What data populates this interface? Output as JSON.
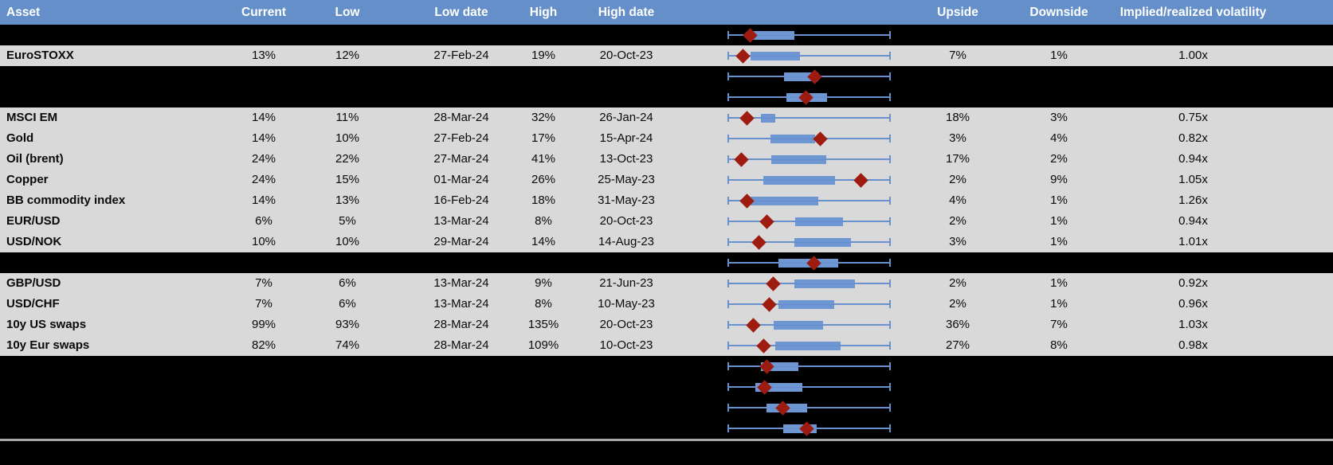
{
  "styles": {
    "header_bg": "#648fc9",
    "header_text": "#ffffff",
    "row_gray_bg": "#d9d9d9",
    "row_black_bg": "#000000",
    "whisker_color": "#6890cc",
    "box_fill": "#6e96d2",
    "diamond_color": "#9e1b10",
    "bottom_separator": "#a6a6a6"
  },
  "chart_data": {
    "type": "table",
    "title": "Asset implied volatility ranges with box-whisker plots (red diamond = current level)",
    "columns": [
      "Asset",
      "Current",
      "Low",
      "Low date",
      "High",
      "High date",
      "",
      "Upside",
      "Downside",
      "Implied/realized volatility"
    ],
    "boxplot_note": "Each row's whisker spans the full normalized low-high range (0-100%); box = interquartile range; red diamond marks current level. Percent values below are positions across the whisker width.",
    "rows": [
      {
        "hidden": true,
        "asset": "",
        "current": "",
        "low": "",
        "low_date": "",
        "high": "",
        "high_date": "",
        "upside": "",
        "downside": "",
        "impl_real_vol": "",
        "box_low_pct": 15.6,
        "box_high_pct": 41.0,
        "marker_pct": 13.7
      },
      {
        "hidden": false,
        "asset": "EuroSTOXX",
        "current": "13%",
        "low": "12%",
        "low_date": "27-Feb-24",
        "high": "19%",
        "high_date": "20-Oct-23",
        "upside": "7%",
        "downside": "1%",
        "impl_real_vol": "1.00x",
        "box_low_pct": 14.1,
        "box_high_pct": 44.4,
        "marker_pct": 9.3
      },
      {
        "hidden": true,
        "asset": "",
        "current": "",
        "low": "",
        "low_date": "",
        "high": "",
        "high_date": "",
        "upside": "",
        "downside": "",
        "impl_real_vol": "",
        "box_low_pct": 34.6,
        "box_high_pct": 55.6,
        "marker_pct": 53.2
      },
      {
        "hidden": true,
        "asset": "",
        "current": "",
        "low": "",
        "low_date": "",
        "high": "",
        "high_date": "",
        "upside": "",
        "downside": "",
        "impl_real_vol": "",
        "box_low_pct": 36.0,
        "box_high_pct": 61.0,
        "marker_pct": 47.8
      },
      {
        "hidden": false,
        "asset": "MSCI EM",
        "current": "14%",
        "low": "11%",
        "low_date": "28-Mar-24",
        "high": "32%",
        "high_date": "26-Jan-24",
        "upside": "18%",
        "downside": "3%",
        "impl_real_vol": "0.75x",
        "box_low_pct": 20.5,
        "box_high_pct": 29.3,
        "marker_pct": 11.7
      },
      {
        "hidden": false,
        "asset": "Gold",
        "current": "14%",
        "low": "10%",
        "low_date": "27-Feb-24",
        "high": "17%",
        "high_date": "15-Apr-24",
        "upside": "3%",
        "downside": "4%",
        "impl_real_vol": "0.82x",
        "box_low_pct": 26.3,
        "box_high_pct": 53.7,
        "marker_pct": 57.0
      },
      {
        "hidden": false,
        "asset": "Oil (brent)",
        "current": "24%",
        "low": "22%",
        "low_date": "27-Mar-24",
        "high": "41%",
        "high_date": "13-Oct-23",
        "upside": "17%",
        "downside": "2%",
        "impl_real_vol": "0.94x",
        "box_low_pct": 26.8,
        "box_high_pct": 60.5,
        "marker_pct": 8.3
      },
      {
        "hidden": false,
        "asset": "Copper",
        "current": "24%",
        "low": "15%",
        "low_date": "01-Mar-24",
        "high": "26%",
        "high_date": "25-May-23",
        "upside": "2%",
        "downside": "9%",
        "impl_real_vol": "1.05x",
        "box_low_pct": 22.0,
        "box_high_pct": 66.0,
        "marker_pct": 81.5
      },
      {
        "hidden": false,
        "asset": "BB commodity index",
        "current": "14%",
        "low": "13%",
        "low_date": "16-Feb-24",
        "high": "18%",
        "high_date": "31-May-23",
        "upside": "4%",
        "downside": "1%",
        "impl_real_vol": "1.26x",
        "box_low_pct": 14.0,
        "box_high_pct": 55.6,
        "marker_pct": 11.7
      },
      {
        "hidden": false,
        "asset": "EUR/USD",
        "current": "6%",
        "low": "5%",
        "low_date": "13-Mar-24",
        "high": "8%",
        "high_date": "20-Oct-23",
        "upside": "2%",
        "downside": "1%",
        "impl_real_vol": "0.94x",
        "box_low_pct": 41.5,
        "box_high_pct": 70.7,
        "marker_pct": 24.0
      },
      {
        "hidden": false,
        "asset": "USD/NOK",
        "current": "10%",
        "low": "10%",
        "low_date": "29-Mar-24",
        "high": "14%",
        "high_date": "14-Aug-23",
        "upside": "3%",
        "downside": "1%",
        "impl_real_vol": "1.01x",
        "box_low_pct": 41.0,
        "box_high_pct": 75.6,
        "marker_pct": 19.0
      },
      {
        "hidden": true,
        "asset": "",
        "current": "",
        "low": "",
        "low_date": "",
        "high": "",
        "high_date": "",
        "upside": "",
        "downside": "",
        "impl_real_vol": "",
        "box_low_pct": 31.0,
        "box_high_pct": 67.8,
        "marker_pct": 53.0
      },
      {
        "hidden": false,
        "asset": "GBP/USD",
        "current": "7%",
        "low": "6%",
        "low_date": "13-Mar-24",
        "high": "9%",
        "high_date": "21-Jun-23",
        "upside": "2%",
        "downside": "1%",
        "impl_real_vol": "0.92x",
        "box_low_pct": 41.0,
        "box_high_pct": 78.0,
        "marker_pct": 27.8
      },
      {
        "hidden": false,
        "asset": "USD/CHF",
        "current": "7%",
        "low": "6%",
        "low_date": "13-Mar-24",
        "high": "8%",
        "high_date": "10-May-23",
        "upside": "2%",
        "downside": "1%",
        "impl_real_vol": "0.96x",
        "box_low_pct": 31.2,
        "box_high_pct": 65.4,
        "marker_pct": 25.4
      },
      {
        "hidden": false,
        "asset": "10y US swaps",
        "current": "99%",
        "low": "93%",
        "low_date": "28-Mar-24",
        "high": "135%",
        "high_date": "20-Oct-23",
        "upside": "36%",
        "downside": "7%",
        "impl_real_vol": "1.03x",
        "box_low_pct": 28.3,
        "box_high_pct": 58.5,
        "marker_pct": 15.6
      },
      {
        "hidden": false,
        "asset": "10y Eur swaps",
        "current": "82%",
        "low": "74%",
        "low_date": "28-Mar-24",
        "high": "109%",
        "high_date": "10-Oct-23",
        "upside": "27%",
        "downside": "8%",
        "impl_real_vol": "0.98x",
        "box_low_pct": 29.3,
        "box_high_pct": 69.3,
        "marker_pct": 22.0
      },
      {
        "hidden": true,
        "asset": "",
        "current": "",
        "low": "",
        "low_date": "",
        "high": "",
        "high_date": "",
        "upside": "",
        "downside": "",
        "impl_real_vol": "",
        "box_low_pct": 20.5,
        "box_high_pct": 43.4,
        "marker_pct": 23.9
      },
      {
        "hidden": true,
        "asset": "",
        "current": "",
        "low": "",
        "low_date": "",
        "high": "",
        "high_date": "",
        "upside": "",
        "downside": "",
        "impl_real_vol": "",
        "box_low_pct": 17.0,
        "box_high_pct": 46.0,
        "marker_pct": 22.9
      },
      {
        "hidden": true,
        "asset": "",
        "current": "",
        "low": "",
        "low_date": "",
        "high": "",
        "high_date": "",
        "upside": "",
        "downside": "",
        "impl_real_vol": "",
        "box_low_pct": 24.0,
        "box_high_pct": 49.0,
        "marker_pct": 34.1
      },
      {
        "hidden": true,
        "asset": "",
        "current": "",
        "low": "",
        "low_date": "",
        "high": "",
        "high_date": "",
        "upside": "",
        "downside": "",
        "impl_real_vol": "",
        "box_low_pct": 34.0,
        "box_high_pct": 54.6,
        "marker_pct": 48.3
      }
    ]
  }
}
